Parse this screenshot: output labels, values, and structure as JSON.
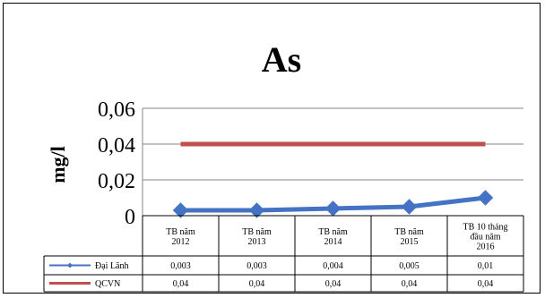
{
  "chart_data": {
    "type": "line",
    "title": "As",
    "ylabel": "mg/l",
    "xlabel": "",
    "ylim": [
      0,
      0.06
    ],
    "yticks": [
      0,
      0.02,
      0.04,
      0.06
    ],
    "ytick_labels": [
      "0",
      "0,02",
      "0,04",
      "0,06"
    ],
    "grid": "horizontal",
    "legend": "data-table",
    "categories": [
      [
        "TB năm",
        "2012"
      ],
      [
        "TB năm",
        "2013"
      ],
      [
        "TB năm",
        "2014"
      ],
      [
        "TB năm",
        "2015"
      ],
      [
        "TB 10 tháng",
        "đầu năm",
        "2016"
      ]
    ],
    "series": [
      {
        "name": "Đại Lãnh",
        "values": [
          0.003,
          0.003,
          0.004,
          0.005,
          0.01
        ],
        "labels": [
          "0,003",
          "0,003",
          "0,004",
          "0,005",
          "0,01"
        ],
        "color": "#4472C4",
        "marker": "diamond"
      },
      {
        "name": "QCVN",
        "values": [
          0.04,
          0.04,
          0.04,
          0.04,
          0.04
        ],
        "labels": [
          "0,04",
          "0,04",
          "0,04",
          "0,04",
          "0,04"
        ],
        "color": "#C0504D",
        "marker": "none"
      }
    ]
  }
}
